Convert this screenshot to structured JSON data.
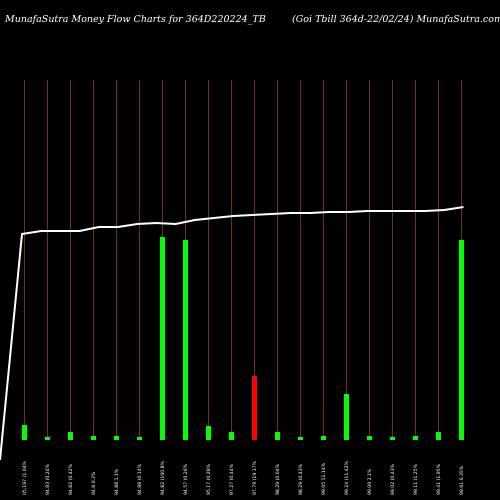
{
  "header": {
    "title_left": "MunafaSutra  Money Flow  Charts for 364D220224_TB",
    "title_right": "(Goi   Tbill 364d-22/02/24) MunafaSutra.com"
  },
  "colors": {
    "background": "#000000",
    "gridline": "#8B4513",
    "up_bar": "#00ff00",
    "down_bar": "#ff0000",
    "line": "#ffffff",
    "text": "#ffffff"
  },
  "chart_data": {
    "type": "bar",
    "grid": true,
    "categories": [
      "05,197 (1.04%",
      "94.83 (0.24%",
      "94.82 (0.42%",
      "94.8 0.2%",
      "94.88 1.1%",
      "94.88 (0.14%",
      "94.82 (100.8%",
      "94.57 (0.26%",
      "95.17 (0.28%",
      "97.27 (0.44%",
      "97.79 (19.17%",
      "98.29 (0.04%",
      "98.29 (0.43%",
      "99.05 11.14%",
      "99.24 (11.42%",
      "99.09 2.1%",
      "99.02 (0.43%",
      "99.11 (1.25%",
      "99.41 (1.95%",
      "99.61 0.35%"
    ],
    "series": [
      {
        "type": "bar",
        "values": [
          15,
          3,
          8,
          4,
          4,
          3,
          203,
          200,
          14,
          8,
          64,
          8,
          3,
          4,
          46,
          4,
          3,
          4,
          8,
          200
        ],
        "colors": [
          "up",
          "up",
          "up",
          "up",
          "up",
          "up",
          "up",
          "up",
          "up",
          "up",
          "down",
          "up",
          "up",
          "up",
          "up",
          "up",
          "up",
          "up",
          "up",
          "up"
        ]
      },
      {
        "type": "line",
        "points": [
          [
            0,
            0
          ],
          [
            1,
            226
          ],
          [
            2,
            229
          ],
          [
            3,
            229
          ],
          [
            4,
            229
          ],
          [
            5,
            233
          ],
          [
            6,
            233
          ],
          [
            7,
            236
          ],
          [
            8,
            237
          ],
          [
            9,
            236
          ],
          [
            10,
            240
          ],
          [
            11,
            242
          ],
          [
            12,
            244
          ],
          [
            13,
            245
          ],
          [
            14,
            246
          ],
          [
            15,
            247
          ],
          [
            16,
            247
          ],
          [
            17,
            248
          ],
          [
            18,
            248
          ],
          [
            19,
            249
          ],
          [
            20,
            249
          ],
          [
            21,
            249
          ],
          [
            22,
            249
          ],
          [
            23,
            250
          ],
          [
            24,
            253
          ]
        ]
      }
    ]
  }
}
